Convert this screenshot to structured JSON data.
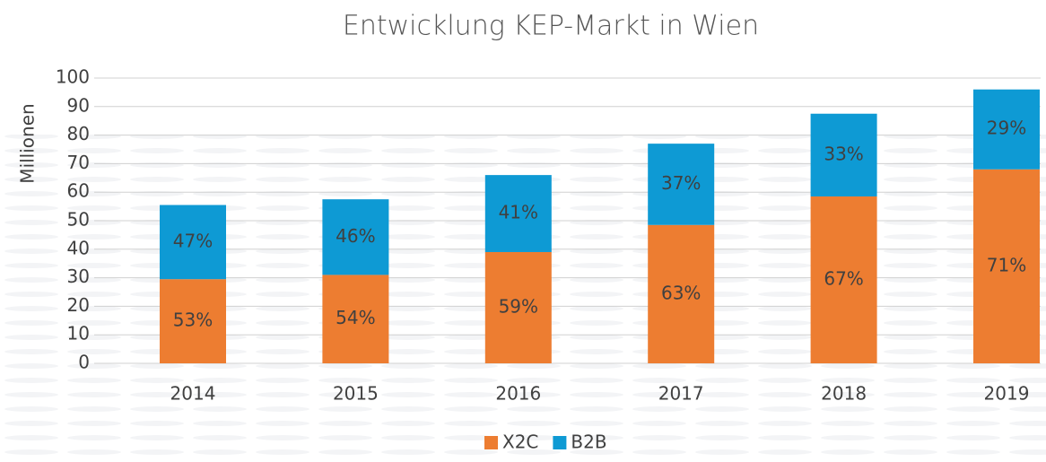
{
  "chart_data": {
    "type": "stacked_bar",
    "title": "Entwicklung KEP-Markt in Wien",
    "y_label": "Millionen",
    "categories": [
      "2014",
      "2015",
      "2016",
      "2017",
      "2018",
      "2019"
    ],
    "series": [
      {
        "name": "X2C",
        "color": "#ed7d31",
        "values": [
          29.5,
          31,
          39,
          48.5,
          58.5,
          68
        ],
        "value_labels": [
          "53%",
          "54%",
          "59%",
          "63%",
          "67%",
          "71%"
        ]
      },
      {
        "name": "B2B",
        "color": "#0e9ad4",
        "values": [
          26,
          26.5,
          27,
          28.5,
          29,
          28
        ],
        "value_labels": [
          "47%",
          "46%",
          "41%",
          "37%",
          "33%",
          "29%"
        ]
      }
    ],
    "ylim": [
      0,
      100
    ],
    "yticks": [
      0,
      10,
      20,
      30,
      40,
      50,
      60,
      70,
      80,
      90,
      100
    ],
    "grid": true,
    "legend": "bottom"
  }
}
